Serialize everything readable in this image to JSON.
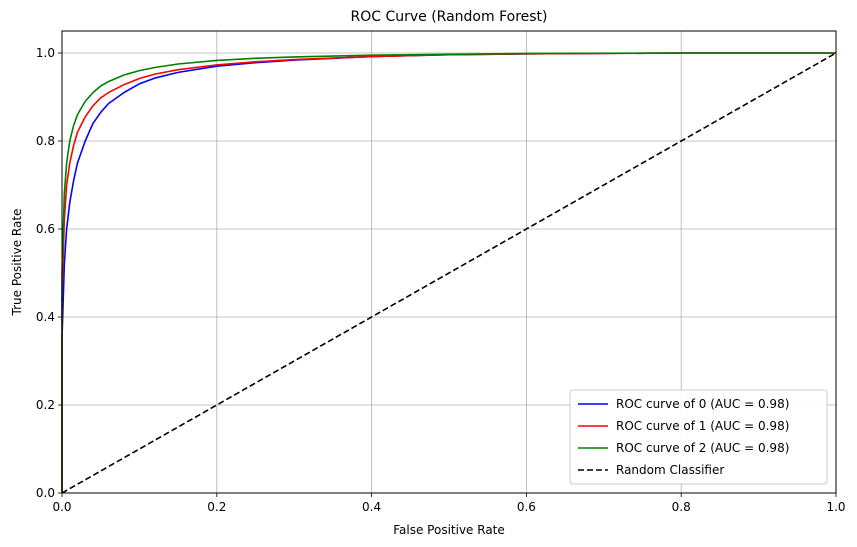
{
  "chart_data": {
    "type": "line",
    "title": "ROC Curve (Random Forest)",
    "xlabel": "False Positive Rate",
    "ylabel": "True Positive Rate",
    "xlim": [
      0.0,
      1.0
    ],
    "ylim": [
      0.0,
      1.05
    ],
    "xticks": [
      "0.0",
      "0.2",
      "0.4",
      "0.6",
      "0.8",
      "1.0"
    ],
    "yticks": [
      "0.0",
      "0.2",
      "0.4",
      "0.6",
      "0.8",
      "1.0"
    ],
    "grid": true,
    "legend_position": "lower-right",
    "series": [
      {
        "name": "ROC curve of 0 (AUC = 0.98)",
        "color": "#0000ff",
        "style": "solid",
        "x": [
          0.0,
          0.0,
          0.003,
          0.006,
          0.01,
          0.015,
          0.02,
          0.03,
          0.04,
          0.05,
          0.06,
          0.08,
          0.1,
          0.12,
          0.15,
          0.2,
          0.25,
          0.3,
          0.4,
          0.5,
          0.6,
          0.8,
          1.0
        ],
        "y": [
          0.0,
          0.35,
          0.52,
          0.6,
          0.66,
          0.71,
          0.75,
          0.8,
          0.84,
          0.865,
          0.885,
          0.91,
          0.93,
          0.943,
          0.956,
          0.97,
          0.978,
          0.984,
          0.992,
          0.996,
          0.998,
          1.0,
          1.0
        ]
      },
      {
        "name": "ROC curve of 1 (AUC = 0.98)",
        "color": "#ff0000",
        "style": "solid",
        "x": [
          0.0,
          0.0,
          0.003,
          0.006,
          0.01,
          0.015,
          0.02,
          0.03,
          0.04,
          0.05,
          0.06,
          0.08,
          0.1,
          0.12,
          0.15,
          0.2,
          0.25,
          0.3,
          0.4,
          0.5,
          0.6,
          0.8,
          1.0
        ],
        "y": [
          0.0,
          0.45,
          0.62,
          0.7,
          0.75,
          0.79,
          0.82,
          0.855,
          0.88,
          0.898,
          0.91,
          0.928,
          0.942,
          0.952,
          0.962,
          0.973,
          0.98,
          0.985,
          0.992,
          0.996,
          0.998,
          1.0,
          1.0
        ]
      },
      {
        "name": "ROC curve of 2 (AUC = 0.98)",
        "color": "#008000",
        "style": "solid",
        "x": [
          0.0,
          0.0,
          0.003,
          0.006,
          0.01,
          0.015,
          0.02,
          0.03,
          0.04,
          0.05,
          0.06,
          0.08,
          0.1,
          0.12,
          0.15,
          0.2,
          0.25,
          0.3,
          0.4,
          0.5,
          0.6,
          0.8,
          1.0
        ],
        "y": [
          0.0,
          0.5,
          0.68,
          0.75,
          0.8,
          0.835,
          0.86,
          0.89,
          0.91,
          0.925,
          0.935,
          0.95,
          0.96,
          0.967,
          0.975,
          0.983,
          0.988,
          0.991,
          0.995,
          0.997,
          0.999,
          1.0,
          1.0
        ]
      },
      {
        "name": "Random Classifier",
        "color": "#000000",
        "style": "dashed",
        "x": [
          0.0,
          1.0
        ],
        "y": [
          0.0,
          1.0
        ]
      }
    ]
  }
}
